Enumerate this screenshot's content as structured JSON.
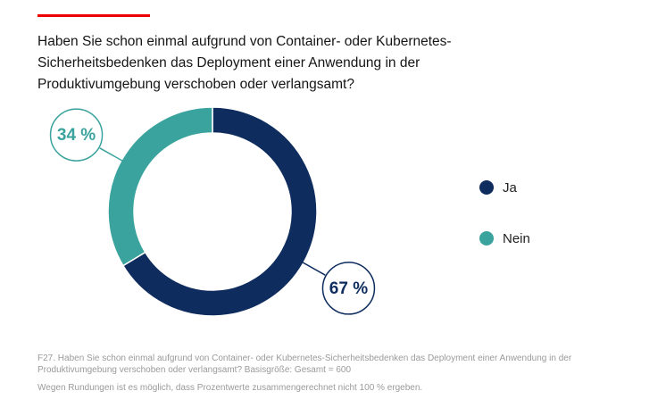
{
  "chart_data": {
    "type": "pie",
    "title": "Haben Sie schon einmal aufgrund von Container- oder Kubernetes-Sicherheitsbedenken das Deployment einer Anwendung in der Produktivumgebung verschoben oder verlangsamt?",
    "categories": [
      "Ja",
      "Nein"
    ],
    "values": [
      67,
      34
    ],
    "value_labels": [
      "67 %",
      "34 %"
    ],
    "colors": [
      "#0e2d5e",
      "#3aa39d"
    ],
    "notes": [
      "F27. Haben Sie schon einmal aufgrund von Container- oder Kubernetes-Sicherheitsbedenken das Deployment einer Anwendung in der Produktivumgebung verschoben oder verlangsamt? Basisgröße: Gesamt = 600",
      "Wegen Rundungen ist es möglich, dass Prozentwerte zusammengerechnet nicht 100 % ergeben."
    ]
  }
}
